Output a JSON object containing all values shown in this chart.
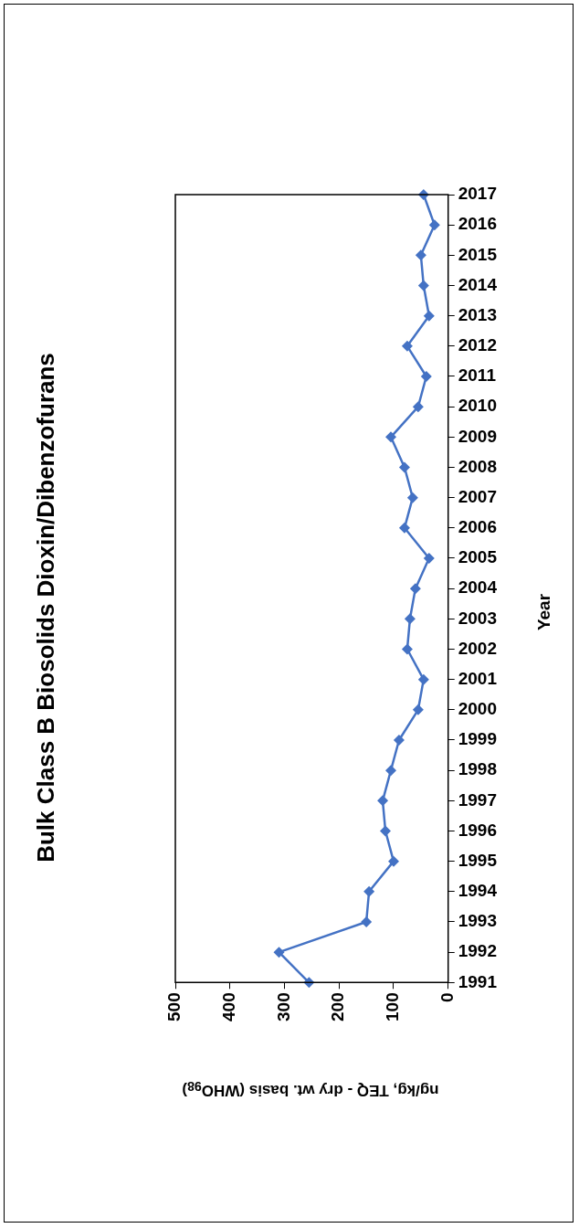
{
  "chart_data": {
    "type": "line",
    "orientation": "horizontal",
    "title": "Bulk Class B Biosolids Dioxin/Dibenzofurans",
    "ylabel": "Year",
    "xlabel": "ng/kg,  TEQ - dry wt. basis (WHO$_{98}$)",
    "categories": [
      "2017",
      "2016",
      "2015",
      "2014",
      "2013",
      "2012",
      "2011",
      "2010",
      "2009",
      "2008",
      "2007",
      "2006",
      "2005",
      "2004",
      "2003",
      "2002",
      "2001",
      "2000",
      "1999",
      "1998",
      "1997",
      "1996",
      "1995",
      "1994",
      "1993",
      "1992",
      "1991"
    ],
    "series": [
      {
        "color": "#4472c4",
        "values": [
          45,
          25,
          50,
          45,
          35,
          75,
          40,
          55,
          105,
          80,
          65,
          80,
          35,
          60,
          70,
          75,
          45,
          55,
          90,
          105,
          120,
          115,
          100,
          145,
          150,
          310,
          255
        ]
      }
    ],
    "xlim": [
      500,
      0
    ],
    "xticks": [
      500,
      400,
      300,
      200,
      100,
      0
    ],
    "legend": false,
    "marker": "diamond",
    "line_style": "solid"
  }
}
